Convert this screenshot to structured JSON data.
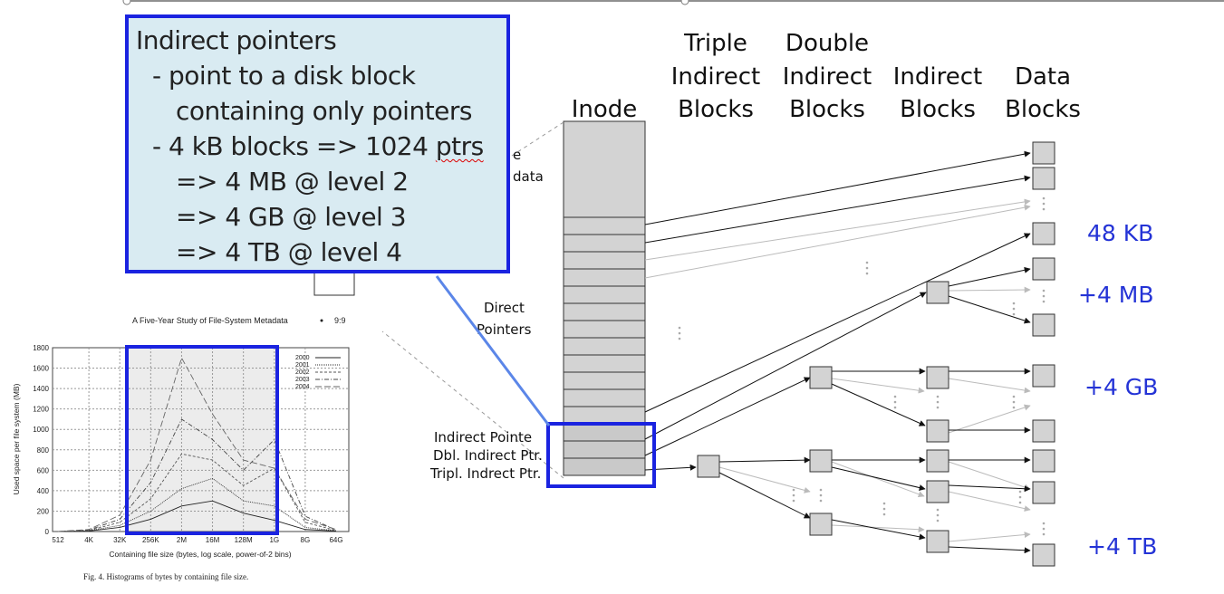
{
  "column_headers": {
    "inode": "Inode",
    "triple": [
      "Triple",
      "Indirect",
      "Blocks"
    ],
    "double": [
      "Double",
      "Indirect",
      "Blocks"
    ],
    "indirect": [
      "Indirect",
      "Blocks"
    ],
    "data": [
      "Data",
      "Blocks"
    ]
  },
  "inode_labels": {
    "metadata_partial": [
      "e",
      "data"
    ],
    "direct": [
      "Direct",
      "Pointers"
    ],
    "indirect": "Indirect Pointe",
    "dbl_indirect": "Dbl. Indirect Ptr.",
    "tripl_indirect": "Tripl. Indrect Ptr."
  },
  "sizes": {
    "kb48": "48 KB",
    "mb4": "+4 MB",
    "gb4": "+4 GB",
    "tb4": "+4 TB"
  },
  "callout": {
    "title": "Indirect pointers",
    "line1": "- point to a disk block",
    "line2": "containing only pointers",
    "line3_prefix": "- 4 kB blocks => 1024 ",
    "line3_word": "ptrs",
    "line4": "=> 4 MB @ level 2",
    "line5": "=> 4 GB @ level 3",
    "line6": "=> 4 TB @ level 4"
  },
  "chart_data": {
    "type": "line",
    "title": "",
    "header": [
      "A Five-Year Study of File-System Metadata",
      "9:9"
    ],
    "caption": "Fig. 4.   Histograms of bytes by containing file size.",
    "xlabel": "Containing file size (bytes, log scale, power-of-2 bins)",
    "ylabel": "Used space per file system (MB)",
    "x_tick_labels": [
      "512",
      "4K",
      "32K",
      "256K",
      "2M",
      "16M",
      "128M",
      "1G",
      "8G",
      "64G"
    ],
    "y_tick_labels": [
      "0",
      "200",
      "400",
      "600",
      "800",
      "1000",
      "1200",
      "1400",
      "1600",
      "1800"
    ],
    "ylim": [
      0,
      1800
    ],
    "grid": true,
    "legend_position": "top-right",
    "x": [
      "512",
      "4K",
      "32K",
      "256K",
      "2M",
      "16M",
      "128M",
      "1G",
      "8G",
      "64G"
    ],
    "series": [
      {
        "name": "2000",
        "values": [
          0,
          5,
          40,
          120,
          250,
          300,
          180,
          110,
          20,
          5
        ]
      },
      {
        "name": "2001",
        "values": [
          0,
          8,
          60,
          200,
          420,
          520,
          300,
          250,
          40,
          8
        ]
      },
      {
        "name": "2002",
        "values": [
          0,
          10,
          90,
          320,
          760,
          700,
          450,
          620,
          90,
          10
        ]
      },
      {
        "name": "2003",
        "values": [
          0,
          15,
          120,
          480,
          1100,
          900,
          600,
          900,
          150,
          15
        ]
      },
      {
        "name": "2004",
        "values": [
          0,
          20,
          160,
          700,
          1700,
          1150,
          700,
          620,
          120,
          20
        ]
      }
    ]
  }
}
